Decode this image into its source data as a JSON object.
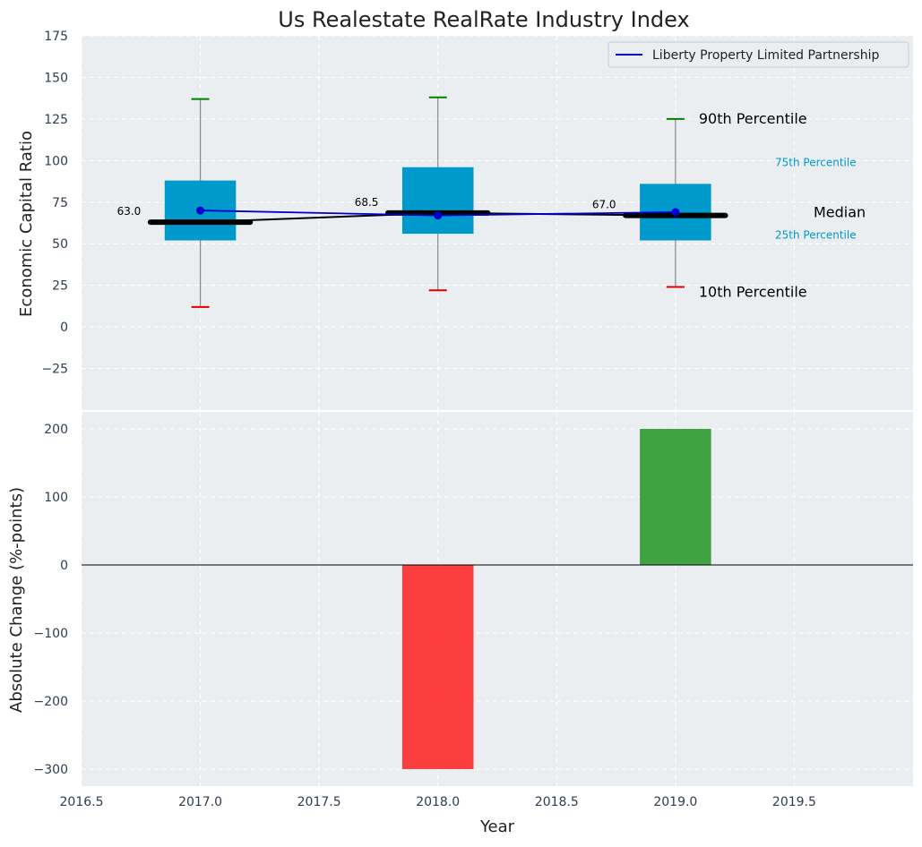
{
  "chart_data": [
    {
      "type": "box",
      "title": "Us Realestate RealRate Industry Index",
      "xlabel": "",
      "ylabel": "Economic Capital Ratio",
      "ylim": [
        -50,
        175
      ],
      "yticks": [
        -25,
        0,
        25,
        50,
        75,
        100,
        125,
        150,
        175
      ],
      "xlim": [
        2016.5,
        2020.0
      ],
      "grid": true,
      "legend": {
        "placement": "top-right",
        "entries": [
          {
            "label": "Liberty Property Limited Partnership",
            "color": "#0000cc"
          }
        ]
      },
      "boxes": [
        {
          "x": 2017,
          "p10": 12,
          "p25": 52,
          "median": 63.0,
          "p75": 88,
          "p90": 137,
          "median_label": "63.0"
        },
        {
          "x": 2018,
          "p10": 22,
          "p25": 56,
          "median": 68.5,
          "p75": 96,
          "p90": 138,
          "median_label": "68.5"
        },
        {
          "x": 2019,
          "p10": 24,
          "p25": 52,
          "median": 67.0,
          "p75": 86,
          "p90": 125,
          "median_label": "67.0"
        }
      ],
      "series": [
        {
          "name": "Liberty Property Limited Partnership",
          "x": [
            2017,
            2018,
            2019
          ],
          "y": [
            70,
            67,
            69
          ]
        }
      ],
      "annotations": {
        "p90": "90th Percentile",
        "p75": "75th Percentile",
        "median": "Median",
        "p25": "25th Percentile",
        "p10": "10th Percentile"
      }
    },
    {
      "type": "bar",
      "title": "",
      "xlabel": "Year",
      "ylabel": "Absolute Change (%-points)",
      "ylim": [
        -325,
        225
      ],
      "yticks": [
        -300,
        -200,
        -100,
        0,
        100,
        200
      ],
      "xlim": [
        2016.5,
        2020.0
      ],
      "xticks": [
        2016.5,
        2017.0,
        2017.5,
        2018.0,
        2018.5,
        2019.0,
        2019.5
      ],
      "xtick_labels": [
        "2016.5",
        "2017.0",
        "2017.5",
        "2018.0",
        "2018.5",
        "2019.0",
        "2019.5"
      ],
      "grid": true,
      "x": [
        2018,
        2019
      ],
      "values": [
        -300,
        200
      ]
    }
  ],
  "colors": {
    "plot_bg": "#eaeef0",
    "grid": "#ffffff",
    "box": "#0099cc",
    "series": "#0000cc",
    "median_line": "#000000",
    "p90_cap": "#008000",
    "p10_cap": "#dd0000",
    "bar_negative": "#ff2a2a",
    "bar_positive": "#2e9a2e",
    "tick_text": "#2d3e50",
    "percentile_small_text": "#0099cc"
  }
}
